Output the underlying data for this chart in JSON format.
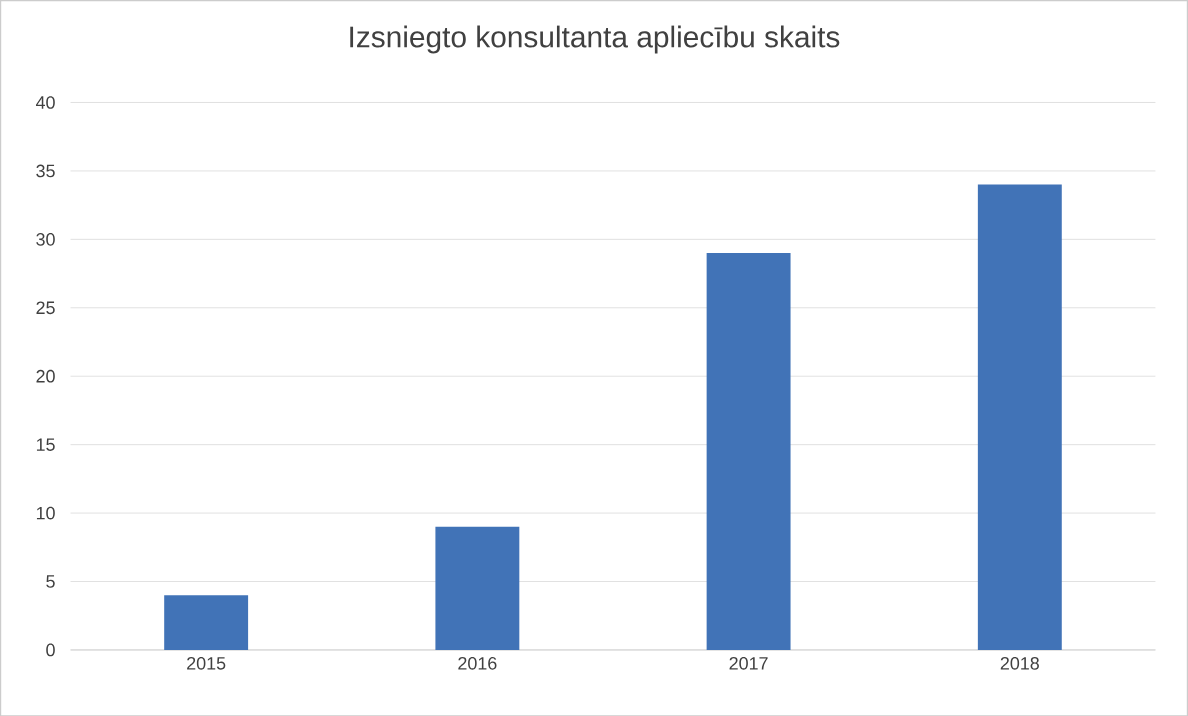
{
  "chart_data": {
    "type": "bar",
    "title": "Izsniegto konsultanta apliecību skaits",
    "categories": [
      "2015",
      "2016",
      "2017",
      "2018"
    ],
    "values": [
      4,
      9,
      29,
      34
    ],
    "color": "#4173b7",
    "ylim": [
      0,
      40
    ],
    "yticks": [
      0,
      5,
      10,
      15,
      20,
      25,
      30,
      35,
      40
    ],
    "grid": "y"
  }
}
